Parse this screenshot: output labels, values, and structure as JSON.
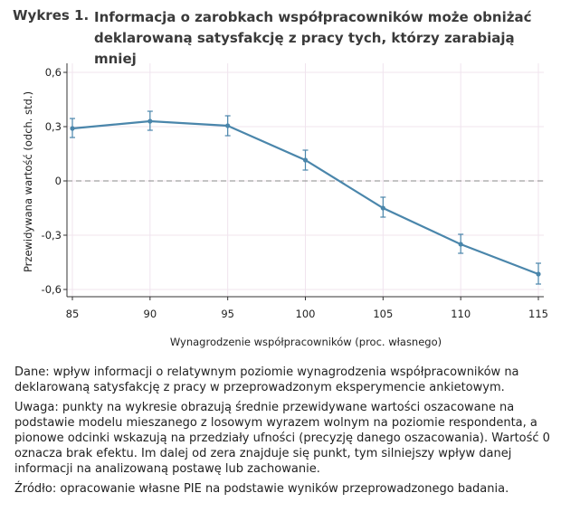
{
  "figure": {
    "label": "Wykres 1.",
    "title": "Informacja o zarobkach współpracowników może obniżać deklarowaną satysfakcję z pracy tych, którzy zarabiają mniej"
  },
  "chart_data": {
    "type": "line",
    "xlabel": "Wynagrodzenie współpracowników (proc. własnego)",
    "ylabel": "Przewidywana wartość (odch. std.)",
    "x": [
      85,
      90,
      95,
      100,
      105,
      110,
      115
    ],
    "y": [
      0.29,
      0.33,
      0.305,
      0.115,
      -0.15,
      -0.35,
      -0.515
    ],
    "ci_lower": [
      0.24,
      0.28,
      0.25,
      0.06,
      -0.2,
      -0.4,
      -0.57
    ],
    "ci_upper": [
      0.345,
      0.385,
      0.36,
      0.17,
      -0.09,
      -0.295,
      -0.455
    ],
    "xticks": [
      85,
      90,
      95,
      100,
      105,
      110,
      115
    ],
    "yticks": [
      0.6,
      0.3,
      0,
      -0.3,
      -0.6
    ],
    "ytick_labels": [
      "0,6",
      "0,3",
      "0",
      "-0,3",
      "-0,6"
    ],
    "xlim": [
      85,
      115
    ],
    "ylim": [
      -0.64,
      0.64
    ],
    "reference_line_y": 0,
    "grid": true,
    "line_color": "#4a86ab",
    "grid_color": "#f0e4ee",
    "zero_line_color": "#8a8a8a"
  },
  "notes": {
    "data": "Dane: wpływ informacji o relatywnym poziomie wynagrodzenia współpracowników na deklarowaną satysfakcję z pracy w przeprowadzonym eksperymencie ankietowym.",
    "caution": "Uwaga: punkty na wykresie obrazują średnie przewidywane wartości oszacowane na podstawie modelu mieszanego z losowym wyrazem wolnym na poziomie respondenta, a pionowe odcinki wskazują na przedziały ufności (precyzję danego oszacowania). Wartość 0 oznacza brak efektu. Im dalej od zera znajduje się punkt, tym silniejszy wpływ danej informacji na analizowaną postawę lub zachowanie.",
    "source": "Źródło: opracowanie własne PIE na podstawie wyników przeprowadzonego badania."
  }
}
